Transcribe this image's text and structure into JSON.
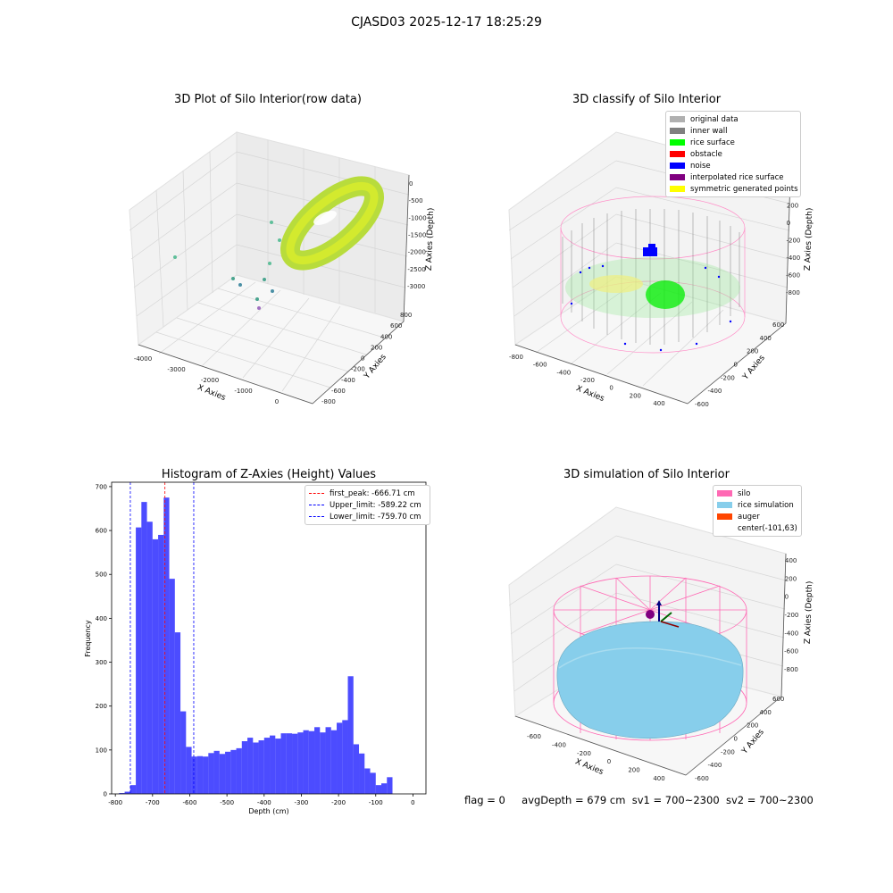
{
  "suptitle": "CJASD03 2025-12-17 18:25:29",
  "chart_data": [
    {
      "type": "scatter",
      "title": "3D Plot of Silo Interior(row data)",
      "xlabel": "X Axies",
      "ylabel": "Y Axies",
      "zlabel": "Z Axies (Depth)",
      "x_ticks": [
        "-4000",
        "-3000",
        "-2000",
        "-1000",
        "0"
      ],
      "y_ticks": [
        "-800",
        "-600",
        "-400",
        "-200",
        "0",
        "200",
        "400",
        "600",
        "800"
      ],
      "z_ticks": [
        "0",
        "-500",
        "-1000",
        "-1500",
        "-2000",
        "-2500",
        "-3000"
      ],
      "colormap": "viridis",
      "grid": true
    },
    {
      "type": "scatter",
      "title": "3D classify of Silo Interior",
      "xlabel": "X Axies",
      "ylabel": "Y Axies",
      "zlabel": "Z Axies (Depth)",
      "x_ticks": [
        "-800",
        "-600",
        "-400",
        "-200",
        "0",
        "200",
        "400"
      ],
      "y_ticks": [
        "-600",
        "-400",
        "-200",
        "0",
        "200",
        "400",
        "600"
      ],
      "z_ticks": [
        "400",
        "200",
        "0",
        "-200",
        "-400",
        "-600",
        "-800"
      ],
      "legend_position": "top-right",
      "legend": [
        {
          "label": "original data",
          "color": "#b0b0b0"
        },
        {
          "label": "inner wall",
          "color": "#808080"
        },
        {
          "label": "rice surface",
          "color": "#00ff00"
        },
        {
          "label": "obstacle",
          "color": "#ff0000"
        },
        {
          "label": "noise",
          "color": "#0000ff"
        },
        {
          "label": "interpolated rice surface",
          "color": "#800080"
        },
        {
          "label": "symmetric generated points",
          "color": "#ffff00"
        }
      ],
      "grid": true
    },
    {
      "type": "bar",
      "title": "Histogram of Z-Axies (Height) Values",
      "xlabel": "Depth (cm)",
      "ylabel": "Frequency",
      "xlim": [
        -810,
        35
      ],
      "ylim": [
        0,
        710
      ],
      "x_ticks": [
        -800,
        -700,
        -600,
        -500,
        -400,
        -300,
        -200,
        -100,
        0
      ],
      "y_ticks": [
        0,
        100,
        200,
        300,
        400,
        500,
        600,
        700
      ],
      "bin_start": -790,
      "bin_width": 15,
      "values": [
        2,
        5,
        20,
        607,
        665,
        620,
        580,
        590,
        675,
        490,
        368,
        188,
        107,
        85,
        86,
        85,
        93,
        98,
        91,
        96,
        100,
        104,
        120,
        128,
        117,
        122,
        128,
        133,
        126,
        138,
        138,
        137,
        140,
        145,
        143,
        152,
        140,
        152,
        145,
        162,
        168,
        268,
        113,
        92,
        58,
        48,
        20,
        24,
        38
      ],
      "bar_color": "#0000ff",
      "lines": [
        {
          "x": -666.71,
          "color": "#ff0000",
          "label": "first_peak: -666.71 cm"
        },
        {
          "x": -589.22,
          "color": "#0000ff",
          "label": "Upper_limit: -589.22 cm"
        },
        {
          "x": -759.7,
          "color": "#0000ff",
          "label": "Lower_limit: -759.70 cm"
        }
      ],
      "legend_position": "top-right",
      "grid": false
    },
    {
      "type": "scatter",
      "title": "3D simulation of Silo Interior",
      "xlabel": "X Axies",
      "ylabel": "Y Axies",
      "zlabel": "Z Axies (Depth)",
      "x_ticks": [
        "-600",
        "-400",
        "-200",
        "0",
        "200",
        "400"
      ],
      "y_ticks": [
        "-600",
        "-400",
        "-200",
        "0",
        "200",
        "400",
        "600"
      ],
      "z_ticks": [
        "400",
        "200",
        "0",
        "-200",
        "-400",
        "-600",
        "-800"
      ],
      "legend_position": "top-right",
      "legend": [
        {
          "label": "silo",
          "color": "#ff69b4"
        },
        {
          "label": "rice simulation",
          "color": "#87ceeb"
        },
        {
          "label": "auger",
          "color": "#ff4500"
        },
        {
          "label": "center(-101,63)",
          "color": ""
        }
      ],
      "grid": true
    }
  ],
  "footer": {
    "flag": "flag = 0",
    "avg": "avgDepth = 679 cm",
    "sv1": "sv1 = 700~2300",
    "sv2": "sv2 = 700~2300"
  }
}
